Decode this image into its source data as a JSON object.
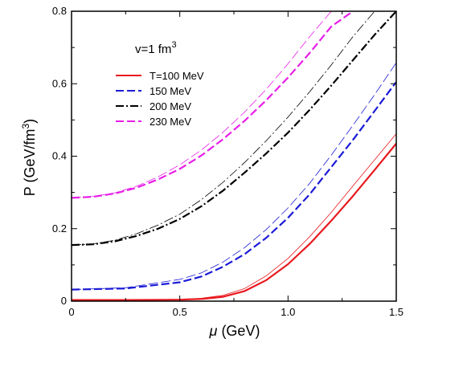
{
  "chart_data": {
    "type": "line",
    "xlabel_symbol": "μ",
    "xlabel_unit": "(GeV)",
    "ylabel": "P (GeV/fm",
    "ylabel_sup": "3",
    "ylabel_close": ")",
    "annotation": "v=1 fm",
    "annotation_sup": "3",
    "xlim": [
      0,
      1.5
    ],
    "ylim": [
      0,
      0.8
    ],
    "xticks": [
      0,
      0.5,
      1.0,
      1.5
    ],
    "xtick_labels": [
      "0",
      "0.5",
      "1.0",
      "1.5"
    ],
    "yticks": [
      0,
      0.2,
      0.4,
      0.6,
      0.8
    ],
    "ytick_labels": [
      "0",
      "0.2",
      "0.4",
      "0.6",
      "0.8"
    ],
    "legend_position": "upper-left",
    "series": [
      {
        "name": "T=100 MeV",
        "color": "#e8191e",
        "dash": "solid",
        "width": "thick",
        "x": [
          0,
          0.25,
          0.5,
          0.6,
          0.7,
          0.8,
          0.9,
          1.0,
          1.1,
          1.2,
          1.3,
          1.4,
          1.5
        ],
        "y": [
          0.003,
          0.003,
          0.004,
          0.006,
          0.012,
          0.028,
          0.058,
          0.102,
          0.158,
          0.222,
          0.29,
          0.362,
          0.435
        ]
      },
      {
        "name": "",
        "color": "#e8191e",
        "dash": "solid",
        "width": "thin",
        "x": [
          0,
          0.25,
          0.5,
          0.6,
          0.7,
          0.8,
          0.9,
          1.0,
          1.1,
          1.2,
          1.3,
          1.4,
          1.5
        ],
        "y": [
          0.003,
          0.003,
          0.005,
          0.008,
          0.016,
          0.035,
          0.07,
          0.118,
          0.178,
          0.245,
          0.318,
          0.39,
          0.462
        ]
      },
      {
        "name": "150 MeV",
        "color": "#1b1bd6",
        "dash": "dash",
        "width": "thick",
        "x": [
          0,
          0.25,
          0.5,
          0.6,
          0.7,
          0.8,
          0.9,
          1.0,
          1.1,
          1.2,
          1.3,
          1.4,
          1.5
        ],
        "y": [
          0.032,
          0.035,
          0.052,
          0.068,
          0.095,
          0.13,
          0.175,
          0.23,
          0.295,
          0.37,
          0.445,
          0.525,
          0.605
        ]
      },
      {
        "name": "",
        "color": "#1b1bd6",
        "dash": "dash",
        "width": "thin",
        "x": [
          0,
          0.25,
          0.5,
          0.6,
          0.7,
          0.8,
          0.9,
          1.0,
          1.1,
          1.2,
          1.3,
          1.4,
          1.5
        ],
        "y": [
          0.032,
          0.037,
          0.06,
          0.078,
          0.108,
          0.148,
          0.198,
          0.257,
          0.325,
          0.403,
          0.485,
          0.57,
          0.658
        ]
      },
      {
        "name": "200 MeV",
        "color": "#000000",
        "dash": "dashdot",
        "width": "thick",
        "x": [
          0,
          0.1,
          0.2,
          0.3,
          0.4,
          0.5,
          0.6,
          0.7,
          0.8,
          0.9,
          1.0,
          1.1,
          1.2,
          1.3,
          1.4,
          1.5
        ],
        "y": [
          0.155,
          0.157,
          0.165,
          0.18,
          0.2,
          0.227,
          0.262,
          0.305,
          0.355,
          0.408,
          0.465,
          0.528,
          0.595,
          0.665,
          0.735,
          0.8
        ]
      },
      {
        "name": "",
        "color": "#000000",
        "dash": "dashdot",
        "width": "thin",
        "x": [
          0,
          0.1,
          0.2,
          0.3,
          0.4,
          0.5,
          0.6,
          0.7,
          0.8,
          0.9,
          1.0,
          1.1,
          1.2,
          1.3,
          1.4,
          1.5
        ],
        "y": [
          0.155,
          0.158,
          0.168,
          0.186,
          0.21,
          0.24,
          0.28,
          0.328,
          0.383,
          0.443,
          0.508,
          0.578,
          0.652,
          0.73,
          0.8,
          0.8
        ]
      },
      {
        "name": "230 MeV",
        "color": "#e81ee8",
        "dash": "dash",
        "width": "thick",
        "x": [
          0,
          0.1,
          0.2,
          0.3,
          0.4,
          0.5,
          0.6,
          0.7,
          0.8,
          0.9,
          1.0,
          1.1,
          1.2,
          1.3
        ],
        "y": [
          0.285,
          0.288,
          0.297,
          0.313,
          0.336,
          0.365,
          0.402,
          0.447,
          0.498,
          0.555,
          0.617,
          0.685,
          0.758,
          0.8
        ]
      },
      {
        "name": "",
        "color": "#e81ee8",
        "dash": "dash",
        "width": "thin",
        "x": [
          0,
          0.1,
          0.2,
          0.3,
          0.4,
          0.5,
          0.6,
          0.7,
          0.8,
          0.9,
          1.0,
          1.1,
          1.2,
          1.3
        ],
        "y": [
          0.285,
          0.289,
          0.299,
          0.317,
          0.343,
          0.376,
          0.417,
          0.466,
          0.522,
          0.585,
          0.655,
          0.73,
          0.8,
          0.8
        ]
      }
    ]
  }
}
